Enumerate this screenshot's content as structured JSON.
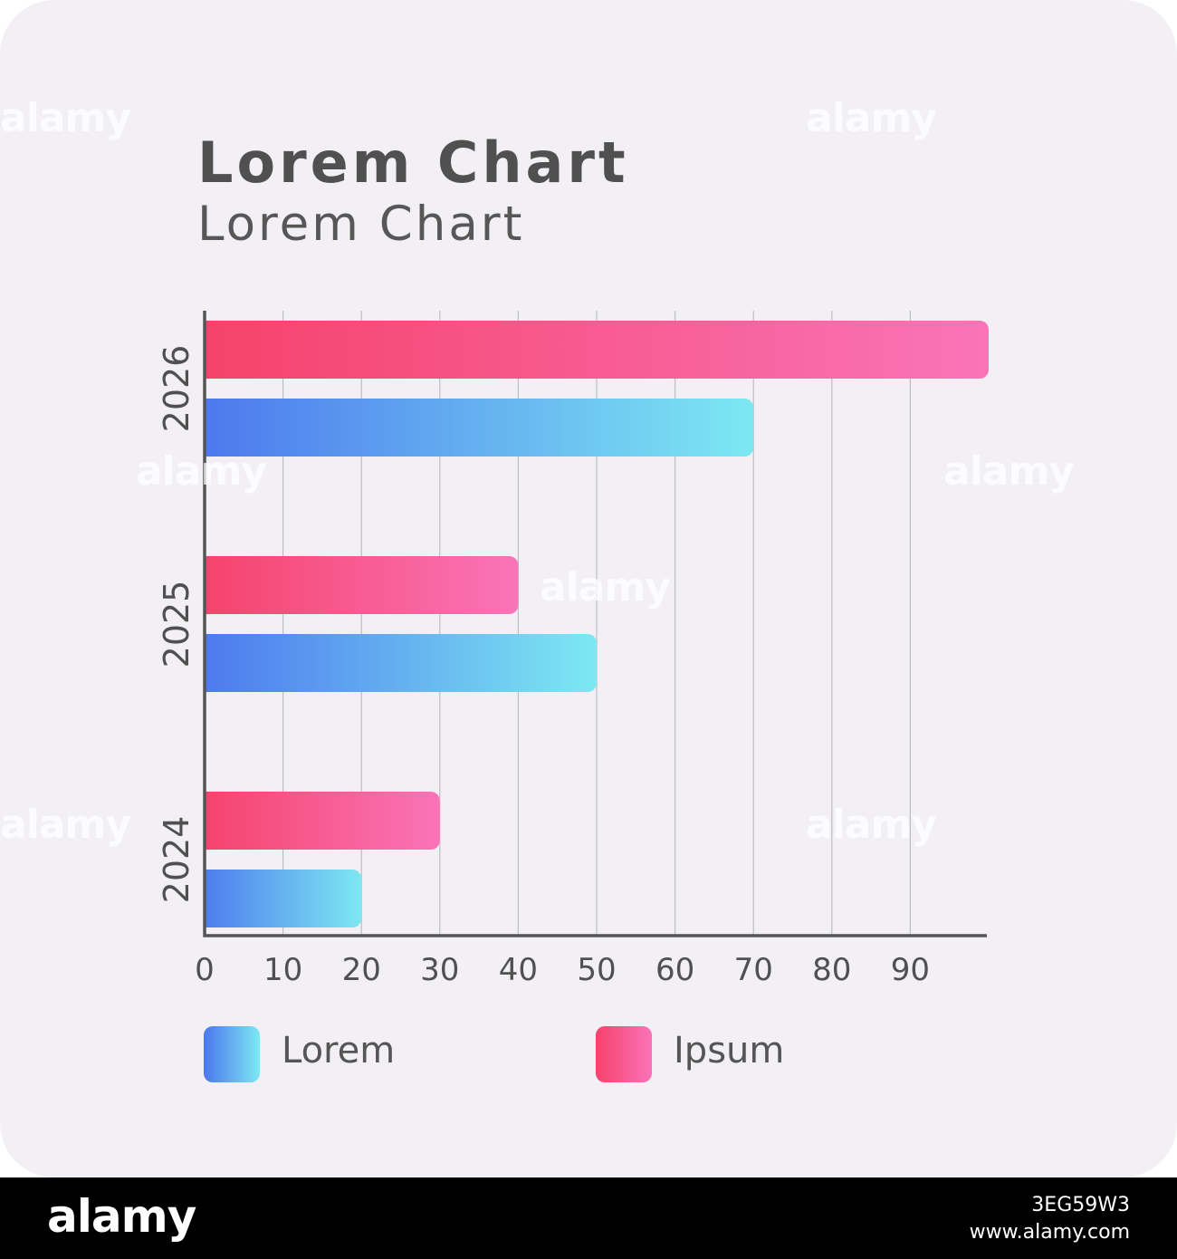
{
  "chart_data": {
    "type": "bar",
    "orientation": "horizontal",
    "title": "Lorem Chart",
    "subtitle": "Lorem Chart",
    "categories": [
      "2026",
      "2025",
      "2024"
    ],
    "series": [
      {
        "name": "Ipsum",
        "values": [
          100,
          40,
          30
        ],
        "gradient": [
          "#f5426a",
          "#fa74b8"
        ]
      },
      {
        "name": "Lorem",
        "values": [
          70,
          50,
          20
        ],
        "gradient": [
          "#4c77ee",
          "#7de8f2"
        ]
      }
    ],
    "xticks": [
      0,
      10,
      20,
      30,
      40,
      50,
      60,
      70,
      80,
      90
    ],
    "xlim": [
      0,
      100
    ],
    "grid": true,
    "legend_position": "bottom"
  },
  "legend": {
    "lorem_label": "Lorem",
    "ipsum_label": "Ipsum"
  },
  "footer": {
    "logo": "alamy",
    "image_id": "3EG59W3",
    "site": "www.alamy.com"
  },
  "watermark_text": "alamy",
  "colors": {
    "background": "#f3f0f5",
    "axis": "#555555",
    "grid": "#bdbdc4",
    "text": "#505050"
  }
}
